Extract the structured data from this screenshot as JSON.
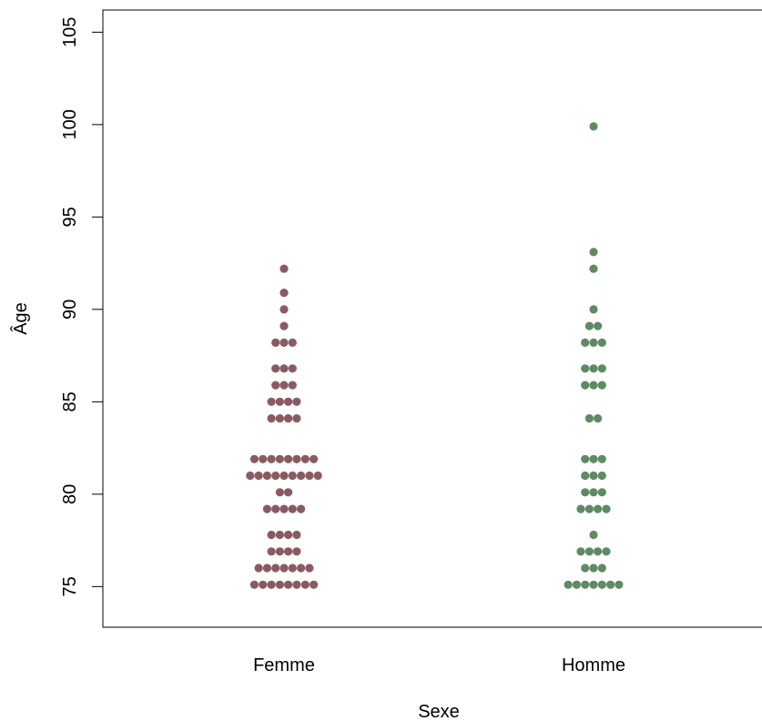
{
  "chart_data": {
    "type": "scatter",
    "subtype": "beeswarm",
    "xlabel": "Sexe",
    "ylabel": "Âge",
    "categories": [
      "Femme",
      "Homme"
    ],
    "ylim": [
      72.8,
      106.2
    ],
    "yticks": [
      75,
      80,
      85,
      90,
      95,
      100,
      105
    ],
    "colors": {
      "Femme": "#8a5a62",
      "Homme": "#5e8a64"
    },
    "series": [
      {
        "category": "Femme",
        "bins": [
          {
            "y": 75.1,
            "count": 8
          },
          {
            "y": 76.0,
            "count": 7
          },
          {
            "y": 76.9,
            "count": 4
          },
          {
            "y": 77.8,
            "count": 4
          },
          {
            "y": 79.2,
            "count": 5
          },
          {
            "y": 80.1,
            "count": 2
          },
          {
            "y": 81.0,
            "count": 9
          },
          {
            "y": 81.9,
            "count": 8
          },
          {
            "y": 84.1,
            "count": 4
          },
          {
            "y": 85.0,
            "count": 4
          },
          {
            "y": 85.9,
            "count": 3
          },
          {
            "y": 86.8,
            "count": 3
          },
          {
            "y": 88.2,
            "count": 3
          },
          {
            "y": 89.1,
            "count": 1
          },
          {
            "y": 90.0,
            "count": 1
          },
          {
            "y": 90.9,
            "count": 1
          },
          {
            "y": 92.2,
            "count": 1
          }
        ]
      },
      {
        "category": "Homme",
        "bins": [
          {
            "y": 75.1,
            "count": 7
          },
          {
            "y": 76.0,
            "count": 3
          },
          {
            "y": 76.9,
            "count": 4
          },
          {
            "y": 77.8,
            "count": 1
          },
          {
            "y": 79.2,
            "count": 4
          },
          {
            "y": 80.1,
            "count": 3
          },
          {
            "y": 81.0,
            "count": 3
          },
          {
            "y": 81.9,
            "count": 3
          },
          {
            "y": 84.1,
            "count": 2
          },
          {
            "y": 85.9,
            "count": 3
          },
          {
            "y": 86.8,
            "count": 3
          },
          {
            "y": 88.2,
            "count": 3
          },
          {
            "y": 89.1,
            "count": 2
          },
          {
            "y": 90.0,
            "count": 1
          },
          {
            "y": 92.2,
            "count": 1
          },
          {
            "y": 93.1,
            "count": 1
          },
          {
            "y": 99.9,
            "count": 1
          }
        ]
      }
    ]
  }
}
